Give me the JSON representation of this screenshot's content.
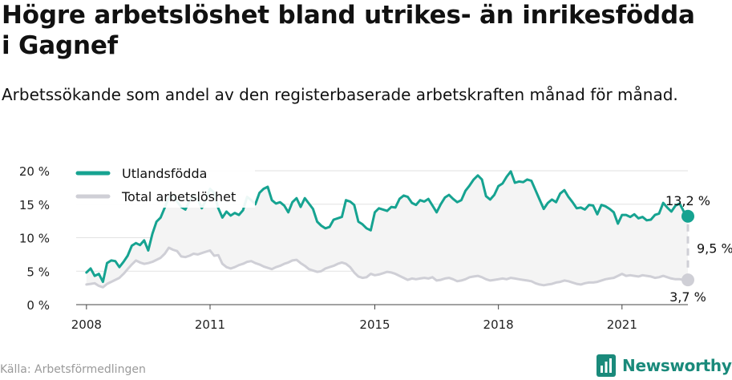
{
  "title": "Högre arbetslöshet bland utrikes- än inrikesfödda i Gagnef",
  "subtitle": "Arbetssökande som andel av den registerbaserade arbetskraften månad för månad.",
  "source": "Källa: Arbetsförmedlingen",
  "brand": "Newsworthy",
  "colors": {
    "foreign": "#16a391",
    "total": "#cfcfd6",
    "band": "#f4f4f4",
    "grid": "#e2e2e2",
    "brand": "#1a8a7b"
  },
  "chart_data": {
    "type": "line",
    "xlim": [
      2007.75,
      2022.6
    ],
    "ylim": [
      0,
      20
    ],
    "x_ticks": [
      {
        "value": 2008,
        "label": "2008"
      },
      {
        "value": 2011,
        "label": "2011"
      },
      {
        "value": 2015,
        "label": "2015"
      },
      {
        "value": 2018,
        "label": "2018"
      },
      {
        "value": 2021,
        "label": "2021"
      }
    ],
    "y_ticks": [
      {
        "value": 0,
        "label": "0 %"
      },
      {
        "value": 5,
        "label": "5 %"
      },
      {
        "value": 10,
        "label": "10 %"
      },
      {
        "value": 15,
        "label": "15 %"
      },
      {
        "value": 20,
        "label": "20 %"
      }
    ],
    "grid": true,
    "legend_position": "top-left",
    "series": [
      {
        "name": "Utlandsfödda",
        "color": "#16a391",
        "points": [
          [
            2008.0,
            4.8
          ],
          [
            2008.1,
            5.4
          ],
          [
            2008.2,
            4.3
          ],
          [
            2008.3,
            4.6
          ],
          [
            2008.4,
            3.4
          ],
          [
            2008.5,
            6.2
          ],
          [
            2008.6,
            6.6
          ],
          [
            2008.7,
            6.5
          ],
          [
            2008.8,
            5.6
          ],
          [
            2008.9,
            6.4
          ],
          [
            2009.0,
            7.3
          ],
          [
            2009.1,
            8.8
          ],
          [
            2009.2,
            9.2
          ],
          [
            2009.3,
            8.9
          ],
          [
            2009.4,
            9.6
          ],
          [
            2009.5,
            8.1
          ],
          [
            2009.6,
            10.6
          ],
          [
            2009.7,
            12.4
          ],
          [
            2009.8,
            13.0
          ],
          [
            2009.9,
            14.5
          ],
          [
            2010.0,
            16.0
          ],
          [
            2010.1,
            16.3
          ],
          [
            2010.2,
            15.4
          ],
          [
            2010.3,
            14.6
          ],
          [
            2010.4,
            14.2
          ],
          [
            2010.5,
            15.5
          ],
          [
            2010.6,
            16.2
          ],
          [
            2010.7,
            15.8
          ],
          [
            2010.8,
            14.4
          ],
          [
            2010.9,
            15.6
          ],
          [
            2011.0,
            17.3
          ],
          [
            2011.1,
            16.7
          ],
          [
            2011.2,
            14.4
          ],
          [
            2011.3,
            13.0
          ],
          [
            2011.4,
            13.9
          ],
          [
            2011.5,
            13.3
          ],
          [
            2011.6,
            13.7
          ],
          [
            2011.7,
            13.4
          ],
          [
            2011.8,
            14.1
          ],
          [
            2011.9,
            16.1
          ],
          [
            2012.0,
            15.6
          ],
          [
            2012.1,
            15.0
          ],
          [
            2012.2,
            16.7
          ],
          [
            2012.3,
            17.3
          ],
          [
            2012.4,
            17.6
          ],
          [
            2012.5,
            15.6
          ],
          [
            2012.6,
            15.1
          ],
          [
            2012.7,
            15.3
          ],
          [
            2012.8,
            14.8
          ],
          [
            2012.9,
            13.8
          ],
          [
            2013.0,
            15.3
          ],
          [
            2013.1,
            15.9
          ],
          [
            2013.2,
            14.6
          ],
          [
            2013.3,
            15.9
          ],
          [
            2013.4,
            15.1
          ],
          [
            2013.5,
            14.3
          ],
          [
            2013.6,
            12.4
          ],
          [
            2013.7,
            11.8
          ],
          [
            2013.8,
            11.4
          ],
          [
            2013.9,
            11.6
          ],
          [
            2014.0,
            12.7
          ],
          [
            2014.1,
            12.9
          ],
          [
            2014.2,
            13.1
          ],
          [
            2014.3,
            15.6
          ],
          [
            2014.4,
            15.4
          ],
          [
            2014.5,
            14.9
          ],
          [
            2014.6,
            12.4
          ],
          [
            2014.7,
            12.0
          ],
          [
            2014.8,
            11.4
          ],
          [
            2014.9,
            11.1
          ],
          [
            2015.0,
            13.8
          ],
          [
            2015.1,
            14.4
          ],
          [
            2015.2,
            14.2
          ],
          [
            2015.3,
            14.0
          ],
          [
            2015.4,
            14.6
          ],
          [
            2015.5,
            14.5
          ],
          [
            2015.6,
            15.8
          ],
          [
            2015.7,
            16.3
          ],
          [
            2015.8,
            16.1
          ],
          [
            2015.9,
            15.2
          ],
          [
            2016.0,
            14.9
          ],
          [
            2016.1,
            15.6
          ],
          [
            2016.2,
            15.4
          ],
          [
            2016.3,
            15.8
          ],
          [
            2016.4,
            14.8
          ],
          [
            2016.5,
            13.8
          ],
          [
            2016.6,
            15.0
          ],
          [
            2016.7,
            16.0
          ],
          [
            2016.8,
            16.4
          ],
          [
            2016.9,
            15.8
          ],
          [
            2017.0,
            15.3
          ],
          [
            2017.1,
            15.6
          ],
          [
            2017.2,
            17.0
          ],
          [
            2017.3,
            17.8
          ],
          [
            2017.4,
            18.7
          ],
          [
            2017.5,
            19.3
          ],
          [
            2017.6,
            18.7
          ],
          [
            2017.7,
            16.2
          ],
          [
            2017.8,
            15.7
          ],
          [
            2017.9,
            16.4
          ],
          [
            2018.0,
            17.7
          ],
          [
            2018.1,
            18.1
          ],
          [
            2018.2,
            19.1
          ],
          [
            2018.3,
            19.9
          ],
          [
            2018.4,
            18.2
          ],
          [
            2018.5,
            18.4
          ],
          [
            2018.6,
            18.3
          ],
          [
            2018.7,
            18.7
          ],
          [
            2018.8,
            18.5
          ],
          [
            2018.9,
            17.1
          ],
          [
            2019.0,
            15.7
          ],
          [
            2019.1,
            14.3
          ],
          [
            2019.2,
            15.2
          ],
          [
            2019.3,
            15.7
          ],
          [
            2019.4,
            15.3
          ],
          [
            2019.5,
            16.6
          ],
          [
            2019.6,
            17.1
          ],
          [
            2019.7,
            16.1
          ],
          [
            2019.8,
            15.3
          ],
          [
            2019.9,
            14.4
          ],
          [
            2020.0,
            14.5
          ],
          [
            2020.1,
            14.2
          ],
          [
            2020.2,
            14.9
          ],
          [
            2020.3,
            14.8
          ],
          [
            2020.4,
            13.5
          ],
          [
            2020.5,
            14.9
          ],
          [
            2020.6,
            14.7
          ],
          [
            2020.7,
            14.3
          ],
          [
            2020.8,
            13.8
          ],
          [
            2020.9,
            12.1
          ],
          [
            2021.0,
            13.4
          ],
          [
            2021.1,
            13.4
          ],
          [
            2021.2,
            13.1
          ],
          [
            2021.3,
            13.5
          ],
          [
            2021.4,
            12.9
          ],
          [
            2021.5,
            13.1
          ],
          [
            2021.6,
            12.6
          ],
          [
            2021.7,
            12.7
          ],
          [
            2021.8,
            13.4
          ],
          [
            2021.9,
            13.6
          ],
          [
            2022.0,
            15.2
          ],
          [
            2022.1,
            14.5
          ],
          [
            2022.2,
            13.9
          ],
          [
            2022.3,
            14.8
          ],
          [
            2022.4,
            15.1
          ],
          [
            2022.5,
            13.9
          ],
          [
            2022.6,
            13.2
          ]
        ]
      },
      {
        "name": "Total arbetslöshet",
        "color": "#cfcfd6",
        "points": [
          [
            2008.0,
            3.0
          ],
          [
            2008.1,
            3.1
          ],
          [
            2008.2,
            3.2
          ],
          [
            2008.3,
            2.8
          ],
          [
            2008.4,
            2.6
          ],
          [
            2008.5,
            3.1
          ],
          [
            2008.6,
            3.4
          ],
          [
            2008.7,
            3.7
          ],
          [
            2008.8,
            4.0
          ],
          [
            2008.9,
            4.6
          ],
          [
            2009.0,
            5.3
          ],
          [
            2009.1,
            6.0
          ],
          [
            2009.2,
            6.6
          ],
          [
            2009.3,
            6.3
          ],
          [
            2009.4,
            6.1
          ],
          [
            2009.5,
            6.2
          ],
          [
            2009.6,
            6.4
          ],
          [
            2009.7,
            6.7
          ],
          [
            2009.8,
            7.0
          ],
          [
            2009.9,
            7.6
          ],
          [
            2010.0,
            8.5
          ],
          [
            2010.1,
            8.2
          ],
          [
            2010.2,
            8.0
          ],
          [
            2010.3,
            7.2
          ],
          [
            2010.4,
            7.1
          ],
          [
            2010.5,
            7.3
          ],
          [
            2010.6,
            7.6
          ],
          [
            2010.7,
            7.5
          ],
          [
            2010.8,
            7.7
          ],
          [
            2010.9,
            7.9
          ],
          [
            2011.0,
            8.1
          ],
          [
            2011.1,
            7.3
          ],
          [
            2011.2,
            7.4
          ],
          [
            2011.3,
            6.1
          ],
          [
            2011.4,
            5.6
          ],
          [
            2011.5,
            5.4
          ],
          [
            2011.6,
            5.6
          ],
          [
            2011.7,
            5.9
          ],
          [
            2011.8,
            6.1
          ],
          [
            2011.9,
            6.4
          ],
          [
            2012.0,
            6.5
          ],
          [
            2012.1,
            6.2
          ],
          [
            2012.2,
            6.0
          ],
          [
            2012.3,
            5.7
          ],
          [
            2012.4,
            5.5
          ],
          [
            2012.5,
            5.3
          ],
          [
            2012.6,
            5.6
          ],
          [
            2012.7,
            5.8
          ],
          [
            2012.8,
            6.1
          ],
          [
            2012.9,
            6.3
          ],
          [
            2013.0,
            6.6
          ],
          [
            2013.1,
            6.7
          ],
          [
            2013.2,
            6.2
          ],
          [
            2013.3,
            5.8
          ],
          [
            2013.4,
            5.3
          ],
          [
            2013.5,
            5.1
          ],
          [
            2013.6,
            4.9
          ],
          [
            2013.7,
            5.0
          ],
          [
            2013.8,
            5.4
          ],
          [
            2013.9,
            5.6
          ],
          [
            2014.0,
            5.8
          ],
          [
            2014.1,
            6.1
          ],
          [
            2014.2,
            6.3
          ],
          [
            2014.3,
            6.1
          ],
          [
            2014.4,
            5.6
          ],
          [
            2014.5,
            4.8
          ],
          [
            2014.6,
            4.2
          ],
          [
            2014.7,
            4.0
          ],
          [
            2014.8,
            4.1
          ],
          [
            2014.9,
            4.6
          ],
          [
            2015.0,
            4.4
          ],
          [
            2015.1,
            4.5
          ],
          [
            2015.2,
            4.7
          ],
          [
            2015.3,
            4.9
          ],
          [
            2015.4,
            4.8
          ],
          [
            2015.5,
            4.6
          ],
          [
            2015.6,
            4.3
          ],
          [
            2015.7,
            4.0
          ],
          [
            2015.8,
            3.7
          ],
          [
            2015.9,
            3.9
          ],
          [
            2016.0,
            3.8
          ],
          [
            2016.1,
            3.9
          ],
          [
            2016.2,
            4.0
          ],
          [
            2016.3,
            3.9
          ],
          [
            2016.4,
            4.1
          ],
          [
            2016.5,
            3.6
          ],
          [
            2016.6,
            3.7
          ],
          [
            2016.7,
            3.9
          ],
          [
            2016.8,
            4.0
          ],
          [
            2016.9,
            3.8
          ],
          [
            2017.0,
            3.5
          ],
          [
            2017.1,
            3.6
          ],
          [
            2017.2,
            3.8
          ],
          [
            2017.3,
            4.1
          ],
          [
            2017.4,
            4.2
          ],
          [
            2017.5,
            4.3
          ],
          [
            2017.6,
            4.1
          ],
          [
            2017.7,
            3.8
          ],
          [
            2017.8,
            3.6
          ],
          [
            2017.9,
            3.7
          ],
          [
            2018.0,
            3.8
          ],
          [
            2018.1,
            3.9
          ],
          [
            2018.2,
            3.8
          ],
          [
            2018.3,
            4.0
          ],
          [
            2018.4,
            3.9
          ],
          [
            2018.5,
            3.8
          ],
          [
            2018.6,
            3.7
          ],
          [
            2018.7,
            3.6
          ],
          [
            2018.8,
            3.5
          ],
          [
            2018.9,
            3.2
          ],
          [
            2019.0,
            3.0
          ],
          [
            2019.1,
            2.9
          ],
          [
            2019.2,
            3.0
          ],
          [
            2019.3,
            3.1
          ],
          [
            2019.4,
            3.3
          ],
          [
            2019.5,
            3.4
          ],
          [
            2019.6,
            3.6
          ],
          [
            2019.7,
            3.5
          ],
          [
            2019.8,
            3.3
          ],
          [
            2019.9,
            3.1
          ],
          [
            2020.0,
            3.0
          ],
          [
            2020.1,
            3.2
          ],
          [
            2020.2,
            3.3
          ],
          [
            2020.3,
            3.3
          ],
          [
            2020.4,
            3.4
          ],
          [
            2020.5,
            3.6
          ],
          [
            2020.6,
            3.8
          ],
          [
            2020.7,
            3.9
          ],
          [
            2020.8,
            4.0
          ],
          [
            2020.9,
            4.3
          ],
          [
            2021.0,
            4.6
          ],
          [
            2021.1,
            4.3
          ],
          [
            2021.2,
            4.4
          ],
          [
            2021.3,
            4.3
          ],
          [
            2021.4,
            4.2
          ],
          [
            2021.5,
            4.4
          ],
          [
            2021.6,
            4.3
          ],
          [
            2021.7,
            4.2
          ],
          [
            2021.8,
            4.0
          ],
          [
            2021.9,
            4.1
          ],
          [
            2022.0,
            4.3
          ],
          [
            2022.1,
            4.1
          ],
          [
            2022.2,
            3.9
          ],
          [
            2022.3,
            3.8
          ],
          [
            2022.4,
            3.8
          ],
          [
            2022.5,
            3.7
          ],
          [
            2022.6,
            3.7
          ]
        ]
      }
    ],
    "annotations": {
      "end_foreign": "13,2 %",
      "end_total": "3,7 %",
      "gap": "9,5 %"
    }
  }
}
